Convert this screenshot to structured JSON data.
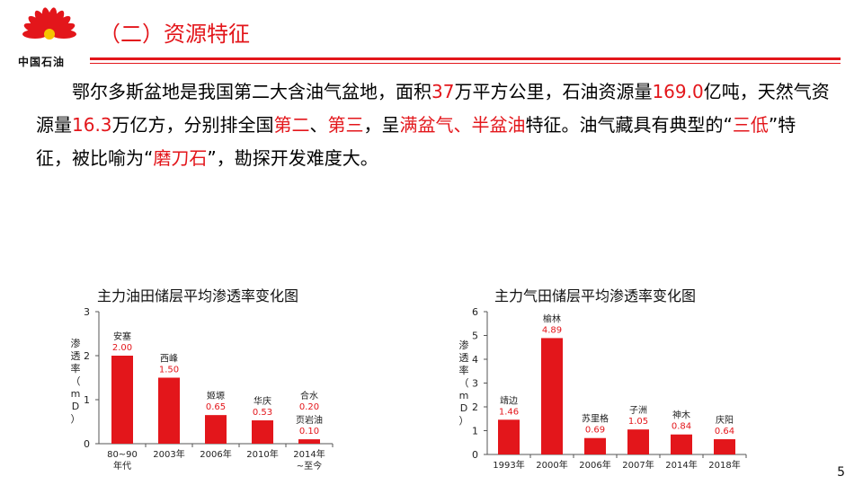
{
  "brand": {
    "logo_text": "中国石油",
    "color": "#e3161b",
    "petal_color": "#e3161b",
    "sun_color": "#f6c400"
  },
  "title": "（二）资源特征",
  "paragraph": [
    {
      "t": "　　鄂尔多斯盆地是我国第二大含油气盆地，面积",
      "red": false
    },
    {
      "t": "37",
      "red": true
    },
    {
      "t": "万平方公里，石油资源量",
      "red": false
    },
    {
      "t": "169.0",
      "red": true
    },
    {
      "t": "亿吨，天然气资源量",
      "red": false
    },
    {
      "t": "16.3",
      "red": true
    },
    {
      "t": "万亿方，分别排全国",
      "red": false
    },
    {
      "t": "第二",
      "red": true
    },
    {
      "t": "、",
      "red": false
    },
    {
      "t": "第三",
      "red": true
    },
    {
      "t": "，呈",
      "red": false
    },
    {
      "t": "满盆气、半盆油",
      "red": true
    },
    {
      "t": "特征。油气藏具有典型的“",
      "red": false
    },
    {
      "t": "三低",
      "red": true
    },
    {
      "t": "”特征，被比喻为“",
      "red": false
    },
    {
      "t": "磨刀石",
      "red": true
    },
    {
      "t": "”，勘探开发难度大。",
      "red": false
    }
  ],
  "chart_data": [
    {
      "type": "bar",
      "title": "主力油田储层平均渗透率变化图",
      "ylabel": "渗透率（mD）",
      "ylim": [
        0,
        3
      ],
      "yticks": [
        0,
        1,
        2,
        3
      ],
      "categories": [
        "80~90年代",
        "2003年",
        "2006年",
        "2010年",
        "2014年~至今"
      ],
      "series": [
        {
          "values": [
            2.0,
            1.5,
            0.65,
            0.53,
            0.1
          ]
        }
      ],
      "bar_labels": [
        [
          {
            "name": "安塞",
            "value": "2.00"
          }
        ],
        [
          {
            "name": "西峰",
            "value": "1.50"
          }
        ],
        [
          {
            "name": "姬塬",
            "value": "0.65"
          }
        ],
        [
          {
            "name": "华庆",
            "value": "0.53"
          }
        ],
        [
          {
            "name": "合水",
            "value": "0.20"
          },
          {
            "name": "页岩油",
            "value": "0.10"
          }
        ]
      ],
      "bar_color": "#e3161b",
      "label_color": "#e3161b",
      "grid": false
    },
    {
      "type": "bar",
      "title": "主力气田储层平均渗透率变化图",
      "ylabel": "渗透率（mD）",
      "ylim": [
        0,
        6
      ],
      "yticks": [
        0,
        1,
        2,
        3,
        4,
        5,
        6
      ],
      "categories": [
        "1993年",
        "2000年",
        "2006年",
        "2007年",
        "2014年",
        "2018年"
      ],
      "series": [
        {
          "values": [
            1.46,
            4.89,
            0.69,
            1.05,
            0.84,
            0.64
          ]
        }
      ],
      "bar_labels": [
        [
          {
            "name": "靖边",
            "value": "1.46"
          }
        ],
        [
          {
            "name": "榆林",
            "value": "4.89"
          }
        ],
        [
          {
            "name": "苏里格",
            "value": "0.69"
          }
        ],
        [
          {
            "name": "子洲",
            "value": "1.05"
          }
        ],
        [
          {
            "name": "神木",
            "value": "0.84"
          }
        ],
        [
          {
            "name": "庆阳",
            "value": "0.64"
          }
        ]
      ],
      "bar_color": "#e3161b",
      "label_color": "#e3161b",
      "grid": false
    }
  ],
  "page_number": "5"
}
